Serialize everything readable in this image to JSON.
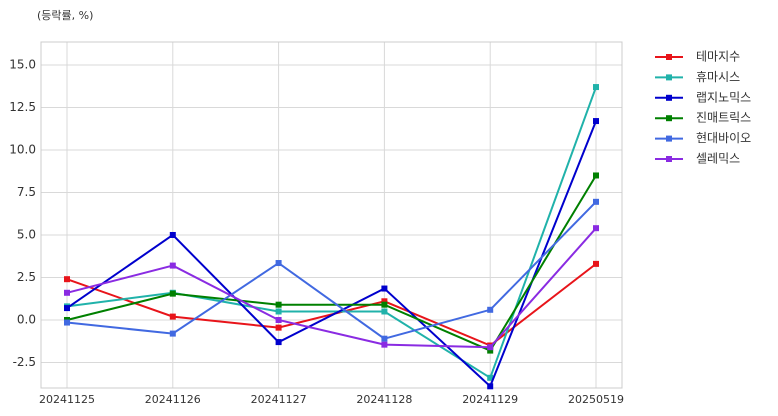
{
  "chart_data": {
    "type": "line",
    "title": "(등락률, %)",
    "categories": [
      "20241125",
      "20241126",
      "20241127",
      "20241128",
      "20241129",
      "20250519"
    ],
    "series": [
      {
        "name": "테마지수",
        "color": "#e8141a",
        "values": [
          2.4,
          0.2,
          -0.45,
          1.1,
          -1.5,
          3.3
        ]
      },
      {
        "name": "휴마시스",
        "color": "#20b2aa",
        "values": [
          0.8,
          1.6,
          0.5,
          0.5,
          -3.4,
          13.7
        ]
      },
      {
        "name": "랩지노믹스",
        "color": "#0000cd",
        "values": [
          0.7,
          5.0,
          -1.3,
          1.85,
          -3.9,
          11.7
        ]
      },
      {
        "name": "진매트릭스",
        "color": "#008000",
        "values": [
          0.0,
          1.55,
          0.9,
          0.9,
          -1.8,
          8.5
        ]
      },
      {
        "name": "현대바이오",
        "color": "#4169e1",
        "values": [
          -0.15,
          -0.8,
          3.35,
          -1.1,
          0.6,
          6.95
        ]
      },
      {
        "name": "셀레믹스",
        "color": "#8a2be2",
        "values": [
          1.6,
          3.2,
          0.0,
          -1.45,
          -1.6,
          5.4
        ]
      }
    ],
    "ylim": [
      -4.0,
      16.35
    ],
    "yticks": [
      -2.5,
      {
        "value": 0,
        "label": "0.0"
      },
      2.5,
      {
        "value": 5,
        "label": "5.0"
      },
      7.5,
      {
        "value": 10,
        "label": "10.0"
      },
      12.5,
      {
        "value": 15,
        "label": "15.0"
      }
    ],
    "grid": true,
    "legend": "outside-right"
  }
}
